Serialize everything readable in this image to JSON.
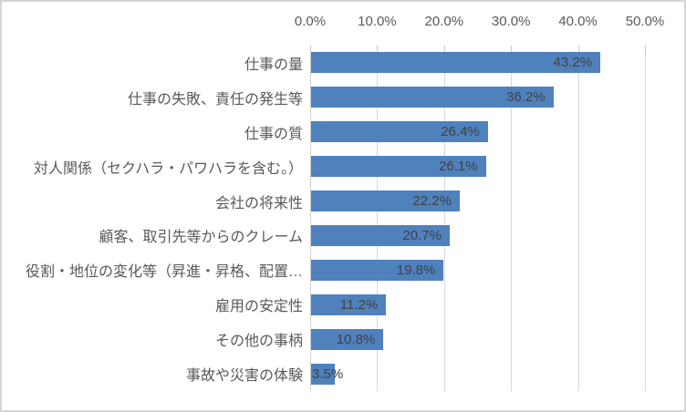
{
  "chart_data": {
    "type": "bar",
    "orientation": "horizontal",
    "title": "",
    "xlabel": "",
    "ylabel": "",
    "xlim": [
      0,
      50
    ],
    "grid": true,
    "legend": false,
    "x_ticks": [
      "0.0%",
      "10.0%",
      "20.0%",
      "30.0%",
      "40.0%",
      "50.0%"
    ],
    "x_tick_values": [
      0,
      10,
      20,
      30,
      40,
      50
    ],
    "categories": [
      "仕事の量",
      "仕事の失敗、責任の発生等",
      "仕事の質",
      "対人関係（セクハラ・パワハラを含む。）",
      "会社の将来性",
      "顧客、取引先等からのクレーム",
      "役割・地位の変化等（昇進・昇格、配置…",
      "雇用の安定性",
      "その他の事柄",
      "事故や災害の体験"
    ],
    "values": [
      43.2,
      36.2,
      26.4,
      26.1,
      22.2,
      20.7,
      19.8,
      11.2,
      10.8,
      3.5
    ],
    "value_labels": [
      "43.2%",
      "36.2%",
      "26.4%",
      "26.1%",
      "22.2%",
      "20.7%",
      "19.8%",
      "11.2%",
      "10.8%",
      "3.5%"
    ],
    "colors": {
      "bar": "#4f81bd",
      "value_label": "#404040",
      "axis_text": "#595959",
      "gridline": "#d9d9d9",
      "chart_border": "#d6d6d6",
      "background": "#ffffff"
    }
  }
}
